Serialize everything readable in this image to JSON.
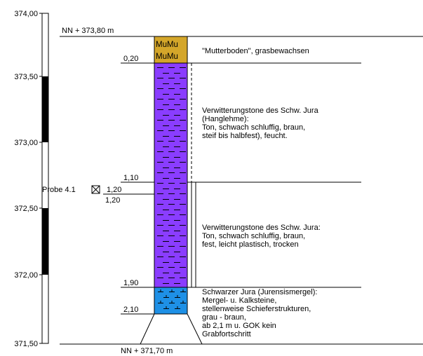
{
  "scale": {
    "labels": [
      "374,00",
      "373,50",
      "373,00",
      "372,50",
      "372,00",
      "371,50"
    ]
  },
  "column": {
    "top_label": "NN + 373,80 m",
    "bottom_label": "NN + 371,70 m",
    "depths": [
      "0,20",
      "1,10",
      "1,90",
      "2,10"
    ],
    "topsoil_symbols": [
      "MuMu",
      "MuMu"
    ]
  },
  "sample": {
    "label": "Probe 4.1",
    "depth_top": "1,20",
    "depth_bottom": "1,20"
  },
  "layers": [
    {
      "lines": [
        "\"Mutterboden\", grasbewachsen"
      ]
    },
    {
      "lines": [
        "Verwitterungstone des Schw. Jura",
        "(Hanglehme):",
        "Ton, schwach schluffig, braun,",
        "steif bis halbfest), feucht."
      ]
    },
    {
      "lines": [
        "Verwitterungstone des Schw. Jura:",
        "Ton, schwach schluffig, braun,",
        "fest, leicht plastisch, trocken"
      ]
    },
    {
      "lines": [
        "Schwarzer Jura (Jurensismergel):",
        "Mergel- u. Kalksteine,",
        "stellenweise Schieferstrukturen,",
        "grau - braun,",
        "ab 2,1 m u. GOK kein",
        "Grabfortschritt"
      ]
    }
  ],
  "colors": {
    "topsoil": "#d4a62a",
    "clay": "#8a3dff",
    "marl": "#1e90e6"
  }
}
